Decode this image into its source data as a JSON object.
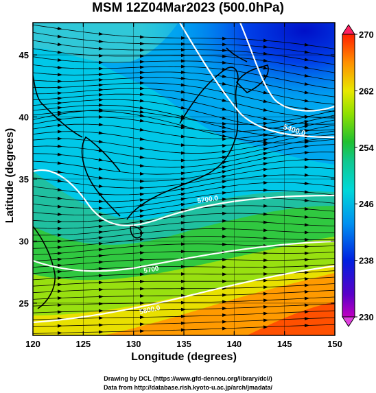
{
  "title": "MSM 12Z04Mar2023 (500.0hPa)",
  "axes": {
    "xlabel": "Longitude (degrees)",
    "ylabel": "Latitude  (degrees)",
    "x_ticks": [
      "120",
      "125",
      "130",
      "135",
      "140",
      "145",
      "150"
    ],
    "y_ticks": [
      "25",
      "30",
      "35",
      "40",
      "45"
    ]
  },
  "colorbar": {
    "labels": [
      "270",
      "262",
      "254",
      "246",
      "238",
      "230"
    ]
  },
  "contours": {
    "labels": [
      "5400.0",
      "5700.0",
      "5700",
      "5800.0"
    ]
  },
  "credits": {
    "line1": "Drawing by DCL (https://www.gfd-dennou.org/library/dcl/)",
    "line2": "Data from http://database.rish.kyoto-u.ac.jp/arch/jmadata/"
  },
  "chart_data": {
    "type": "heatmap",
    "title": "MSM 12Z04Mar2023 (500.0hPa)",
    "xlabel": "Longitude (degrees)",
    "ylabel": "Latitude  (degrees)",
    "xlim": [
      120,
      150
    ],
    "ylim": [
      22.4,
      47.6
    ],
    "x_ticks": [
      120,
      125,
      130,
      135,
      140,
      145,
      150
    ],
    "y_ticks": [
      25,
      30,
      35,
      40,
      45
    ],
    "colorbar_range": [
      230,
      270
    ],
    "colorbar_ticks": [
      230,
      238,
      246,
      254,
      262,
      270
    ],
    "field": "temperature (shaded) with wind streamlines and geopotential height contours",
    "contour_levels": [
      5400,
      5700,
      5800
    ]
  }
}
